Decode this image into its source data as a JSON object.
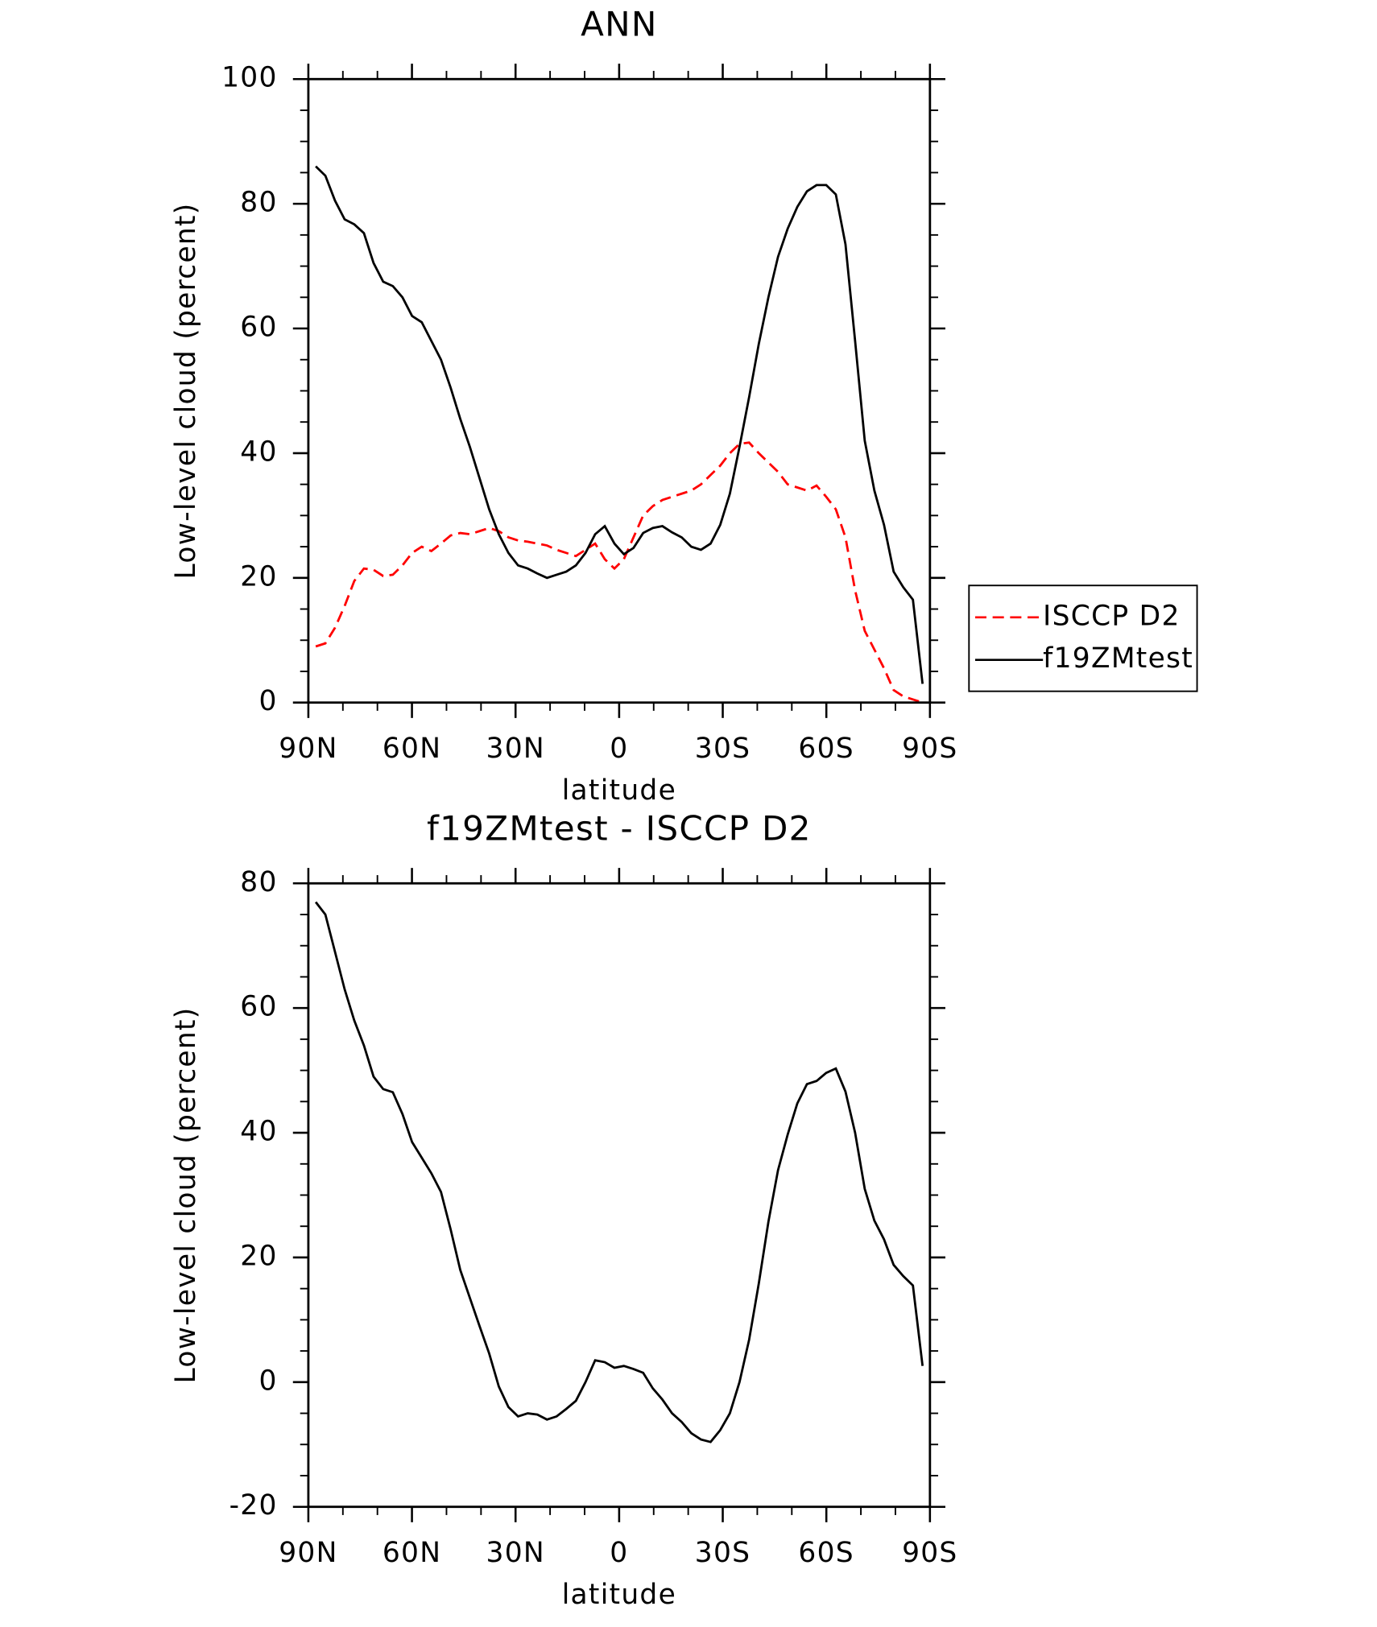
{
  "chart_data": [
    {
      "type": "line",
      "title": "ANN",
      "x_label": "latitude",
      "y_label": "Low-level cloud (percent)",
      "x": [
        87.86,
        85.07,
        82.28,
        79.49,
        76.7,
        73.91,
        71.12,
        68.33,
        65.54,
        62.75,
        59.96,
        57.17,
        54.38,
        51.59,
        48.8,
        46.01,
        43.22,
        40.43,
        37.64,
        34.85,
        32.06,
        29.27,
        26.48,
        23.69,
        20.9,
        18.11,
        15.32,
        12.53,
        9.74,
        6.95,
        4.16,
        1.37,
        -1.37,
        -4.16,
        -6.95,
        -9.74,
        -12.53,
        -15.32,
        -18.11,
        -20.9,
        -23.69,
        -26.48,
        -29.27,
        -32.06,
        -34.85,
        -37.64,
        -40.43,
        -43.22,
        -46.01,
        -48.8,
        -51.59,
        -54.38,
        -57.17,
        -59.96,
        -62.75,
        -65.54,
        -68.33,
        -71.12,
        -73.91,
        -76.7,
        -79.49,
        -82.28,
        -85.07,
        -87.86
      ],
      "series": [
        {
          "name": "ISCCP D2",
          "color": "#ff0000",
          "linestyle": "dashed",
          "values": [
            9,
            9.5,
            12,
            15.5,
            19.5,
            21.5,
            21.3,
            20.3,
            20.5,
            22,
            24,
            25,
            24.3,
            25.5,
            26.8,
            27.2,
            27,
            27.5,
            28,
            27.5,
            26.5,
            26,
            25.8,
            25.5,
            25.2,
            24.5,
            24,
            23.5,
            24.5,
            25.5,
            23,
            21.5,
            23,
            26.5,
            30,
            31.5,
            32.5,
            33,
            33.5,
            34,
            35,
            36.5,
            38,
            40,
            41.5,
            41.7,
            40,
            38.5,
            37,
            35,
            34.5,
            34,
            34.8,
            33,
            31,
            26.5,
            18,
            11.5,
            8.5,
            5.5,
            2,
            1,
            0.5,
            0
          ]
        },
        {
          "name": "f19ZMtest",
          "color": "#000000",
          "linestyle": "solid",
          "values": [
            86,
            84.5,
            80.5,
            77.5,
            76.7,
            75.3,
            70.5,
            67.5,
            66.8,
            65,
            62,
            61,
            58,
            55,
            50.5,
            45.5,
            41,
            36,
            31,
            27,
            24,
            22,
            21.5,
            20.7,
            20,
            20.5,
            21,
            22,
            24,
            27,
            28.3,
            25.5,
            23.8,
            24.8,
            27.2,
            28,
            28.3,
            27.3,
            26.5,
            25,
            24.5,
            25.5,
            28.5,
            33.5,
            41,
            49,
            57.5,
            65,
            71.5,
            76,
            79.5,
            82,
            83,
            83,
            81.5,
            73.5,
            58,
            42,
            34,
            28.5,
            21,
            18.5,
            16.5,
            3
          ]
        }
      ],
      "xlim": [
        90,
        -90
      ],
      "xticks": [
        {
          "value": 90,
          "label": "90N"
        },
        {
          "value": 60,
          "label": "60N"
        },
        {
          "value": 30,
          "label": "30N"
        },
        0,
        {
          "value": -30,
          "label": "30S"
        },
        {
          "value": -60,
          "label": "60S"
        },
        {
          "value": -90,
          "label": "90S"
        }
      ],
      "ylim": [
        0,
        100
      ],
      "yticks": [
        0,
        20,
        40,
        60,
        80,
        100
      ],
      "grid": false,
      "legend": "right"
    },
    {
      "type": "line",
      "title": "f19ZMtest - ISCCP D2",
      "x_label": "latitude",
      "y_label": "Low-level cloud (percent)",
      "x": [
        87.86,
        85.07,
        82.28,
        79.49,
        76.7,
        73.91,
        71.12,
        68.33,
        65.54,
        62.75,
        59.96,
        57.17,
        54.38,
        51.59,
        48.8,
        46.01,
        43.22,
        40.43,
        37.64,
        34.85,
        32.06,
        29.27,
        26.48,
        23.69,
        20.9,
        18.11,
        15.32,
        12.53,
        9.74,
        6.95,
        4.16,
        1.37,
        -1.37,
        -4.16,
        -6.95,
        -9.74,
        -12.53,
        -15.32,
        -18.11,
        -20.9,
        -23.69,
        -26.48,
        -29.27,
        -32.06,
        -34.85,
        -37.64,
        -40.43,
        -43.22,
        -46.01,
        -48.8,
        -51.59,
        -54.38,
        -57.17,
        -59.96,
        -62.75,
        -65.54,
        -68.33,
        -71.12,
        -73.91,
        -76.7,
        -79.49,
        -82.28,
        -85.07,
        -87.86
      ],
      "values": [
        77,
        75,
        69,
        63,
        58,
        54,
        49,
        47,
        46.5,
        43,
        38.5,
        36,
        33.5,
        30.5,
        24.5,
        18,
        13.5,
        9,
        4.6,
        -0.7,
        -4,
        -5.5,
        -5,
        -5.2,
        -6,
        -5.5,
        -4.3,
        -3,
        0,
        3.5,
        3.2,
        2.3,
        2.6,
        2.1,
        1.5,
        -1,
        -2.8,
        -5,
        -6.4,
        -8.2,
        -9.2,
        -9.6,
        -7.7,
        -5,
        0,
        6.8,
        15.8,
        25.7,
        34,
        39.7,
        44.7,
        47.8,
        48.3,
        49.6,
        50.3,
        46.6,
        40,
        31,
        25.9,
        22.9,
        18.8,
        17,
        15.5,
        2.6
      ],
      "color": "#000000",
      "xlim": [
        90,
        -90
      ],
      "xticks": [
        {
          "value": 90,
          "label": "90N"
        },
        {
          "value": 60,
          "label": "60N"
        },
        {
          "value": 30,
          "label": "30N"
        },
        0,
        {
          "value": -30,
          "label": "30S"
        },
        {
          "value": -60,
          "label": "60S"
        },
        {
          "value": -90,
          "label": "90S"
        }
      ],
      "ylim": [
        -20,
        80
      ],
      "yticks": [
        -20,
        0,
        20,
        40,
        60,
        80
      ],
      "grid": false
    }
  ]
}
